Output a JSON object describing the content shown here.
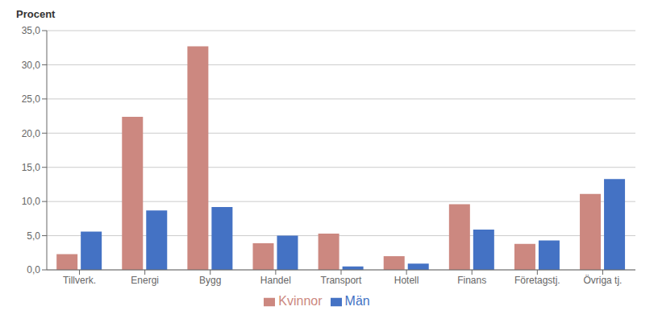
{
  "chart_data": {
    "type": "bar",
    "ylabel": "Procent",
    "categories": [
      "Tillverk.",
      "Energi",
      "Bygg",
      "Handel",
      "Transport",
      "Hotell",
      "Finans",
      "Företagstj.",
      "Övriga tj."
    ],
    "series": [
      {
        "name": "Kvinnor",
        "color": "#CC8880",
        "values": [
          2.3,
          22.4,
          32.7,
          3.9,
          5.3,
          2.0,
          9.6,
          3.8,
          11.1
        ]
      },
      {
        "name": "Män",
        "color": "#4472C4",
        "values": [
          5.6,
          8.7,
          9.2,
          5.0,
          0.5,
          0.9,
          5.9,
          4.3,
          13.3
        ]
      }
    ],
    "ylim": [
      0,
      35
    ],
    "yticks": [
      {
        "value": 0,
        "label": "0,0"
      },
      {
        "value": 5,
        "label": "5,0"
      },
      {
        "value": 10,
        "label": "10,0"
      },
      {
        "value": 15,
        "label": "15,0"
      },
      {
        "value": 20,
        "label": "20,0"
      },
      {
        "value": 25,
        "label": "25,0"
      },
      {
        "value": 30,
        "label": "30,0"
      },
      {
        "value": 35,
        "label": "35,0"
      }
    ],
    "grid": true,
    "legend": "bottom"
  }
}
